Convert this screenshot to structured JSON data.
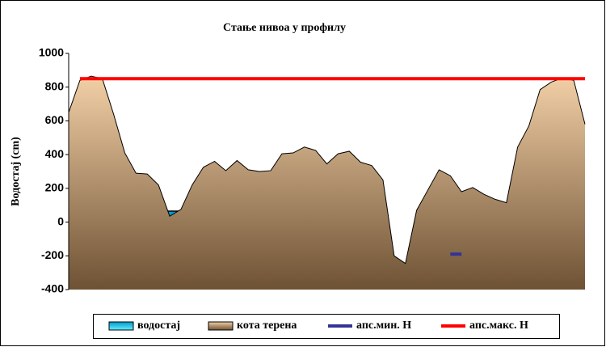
{
  "chart_data": {
    "type": "area",
    "title": "Стање нивоа у профилу",
    "y_label": "Водостај (cm)",
    "ylim": [
      -400,
      1000
    ],
    "yticks": [
      -400,
      -200,
      0,
      200,
      400,
      600,
      800,
      1000
    ],
    "categories": [
      null,
      null,
      null,
      null,
      null,
      null,
      null,
      null,
      null,
      null,
      null,
      null,
      null,
      null,
      null,
      null,
      null,
      null,
      null,
      null,
      null,
      null,
      null,
      null,
      null,
      null,
      null,
      null,
      null,
      null,
      null,
      null,
      null,
      null,
      null,
      null,
      null,
      null,
      null,
      null,
      null,
      null,
      null,
      null,
      null,
      null,
      null
    ],
    "series": [
      {
        "name": "водостај",
        "color": "#00ccee",
        "kind": "water",
        "values": [
          null,
          null,
          null,
          null,
          null,
          null,
          null,
          null,
          65,
          65,
          65,
          65,
          null,
          null,
          null,
          null,
          null,
          null,
          null,
          null,
          null,
          null,
          null,
          null,
          null,
          null,
          null,
          null,
          null,
          null,
          null,
          null,
          null,
          65,
          65,
          65,
          65,
          null,
          null,
          null,
          null,
          null,
          null,
          null,
          null,
          null,
          null
        ]
      },
      {
        "name": "кота терена",
        "color": "#d9a878",
        "kind": "terrain",
        "values": [
          650,
          840,
          865,
          850,
          640,
          410,
          290,
          285,
          220,
          35,
          75,
          220,
          325,
          360,
          305,
          365,
          310,
          300,
          305,
          405,
          410,
          445,
          425,
          345,
          405,
          420,
          355,
          335,
          250,
          -200,
          -245,
          70,
          190,
          310,
          275,
          180,
          205,
          165,
          135,
          115,
          445,
          570,
          785,
          830,
          855,
          840,
          580
        ]
      },
      {
        "name": "апс.мин. H",
        "color": "#333399",
        "kind": "line",
        "values": [
          null,
          null,
          null,
          null,
          null,
          null,
          null,
          null,
          null,
          null,
          null,
          null,
          null,
          null,
          null,
          null,
          null,
          null,
          null,
          null,
          null,
          null,
          null,
          null,
          null,
          null,
          null,
          null,
          null,
          null,
          null,
          null,
          null,
          null,
          -190,
          -190,
          null,
          null,
          null,
          null,
          null,
          null,
          null,
          null,
          null,
          null,
          null
        ]
      },
      {
        "name": "апс.макс. H",
        "color": "#ff0000",
        "kind": "line",
        "values": [
          null,
          850,
          850,
          850,
          850,
          850,
          850,
          850,
          850,
          850,
          850,
          850,
          850,
          850,
          850,
          850,
          850,
          850,
          850,
          850,
          850,
          850,
          850,
          850,
          850,
          850,
          850,
          850,
          850,
          850,
          850,
          850,
          850,
          850,
          850,
          850,
          850,
          850,
          850,
          850,
          850,
          850,
          850,
          850,
          850,
          850,
          850
        ]
      }
    ]
  }
}
